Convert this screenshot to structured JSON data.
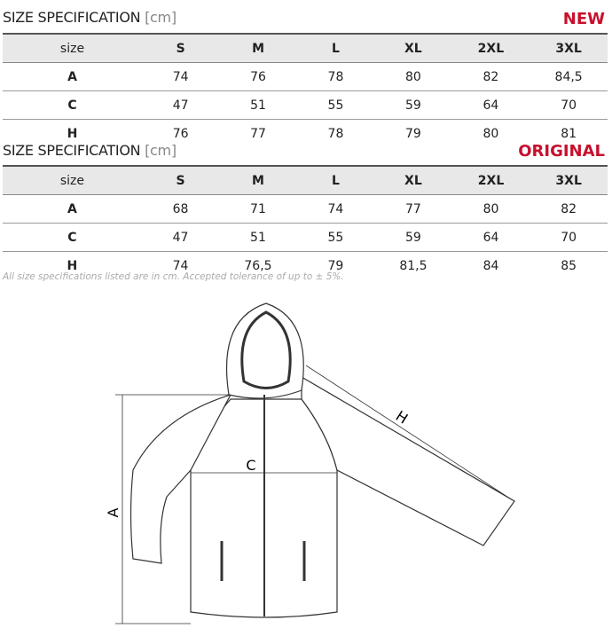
{
  "tables": [
    {
      "title": "SIZE SPECIFICATION",
      "unit": "[cm]",
      "tag": "NEW",
      "headers": [
        "size",
        "S",
        "M",
        "L",
        "XL",
        "2XL",
        "3XL"
      ],
      "rows": [
        [
          "A",
          "74",
          "76",
          "78",
          "80",
          "82",
          "84,5"
        ],
        [
          "C",
          "47",
          "51",
          "55",
          "59",
          "64",
          "70"
        ],
        [
          "H",
          "76",
          "77",
          "78",
          "79",
          "80",
          "81"
        ]
      ]
    },
    {
      "title": "SIZE SPECIFICATION",
      "unit": "[cm]",
      "tag": "ORIGINAL",
      "headers": [
        "size",
        "S",
        "M",
        "L",
        "XL",
        "2XL",
        "3XL"
      ],
      "rows": [
        [
          "A",
          "68",
          "71",
          "74",
          "77",
          "80",
          "82"
        ],
        [
          "C",
          "47",
          "51",
          "55",
          "59",
          "64",
          "70"
        ],
        [
          "H",
          "74",
          "76,5",
          "79",
          "81,5",
          "84",
          "85"
        ]
      ]
    }
  ],
  "note": "All size specifications listed are in cm. Accepted tolerance of up to ± 5%.",
  "diagram": {
    "labels": {
      "a": "A",
      "c": "C",
      "h": "H"
    }
  },
  "colors": {
    "accent": "#c8102e",
    "header_bg": "#e8e8e8"
  }
}
